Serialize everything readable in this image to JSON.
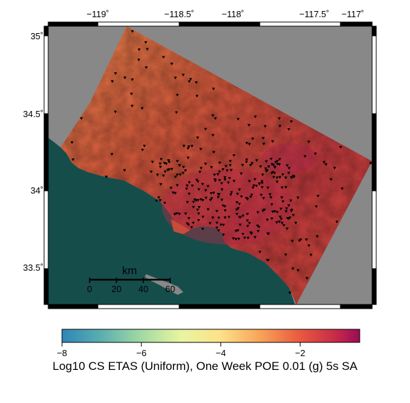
{
  "map": {
    "lon_ticks": [
      "−119˚",
      "−118.5˚",
      "−118˚",
      "−117.5˚",
      "−117˚"
    ],
    "lat_ticks": [
      "35˚",
      "34.5˚",
      "34˚",
      "33.5˚"
    ],
    "extent": {
      "lon": [
        -119.35,
        -116.9
      ],
      "lat": [
        33.25,
        35.1
      ]
    },
    "colors": {
      "ocean": "#154d4b",
      "land_outside": "#888888",
      "hazard_high": "#b8293f",
      "hazard_mid": "#d9503a",
      "hazard_low": "#e5763f",
      "station": "#000000"
    }
  },
  "scale_bar": {
    "unit": "km",
    "ticks": [
      "0",
      "20",
      "40",
      "60"
    ]
  },
  "colorbar": {
    "ticks": [
      "−8",
      "−6",
      "−4",
      "−2"
    ],
    "range": [
      -8,
      -0.5
    ],
    "title": "Log10 CS ETAS (Uniform), One Week POE 0.01 (g) 5s SA"
  }
}
